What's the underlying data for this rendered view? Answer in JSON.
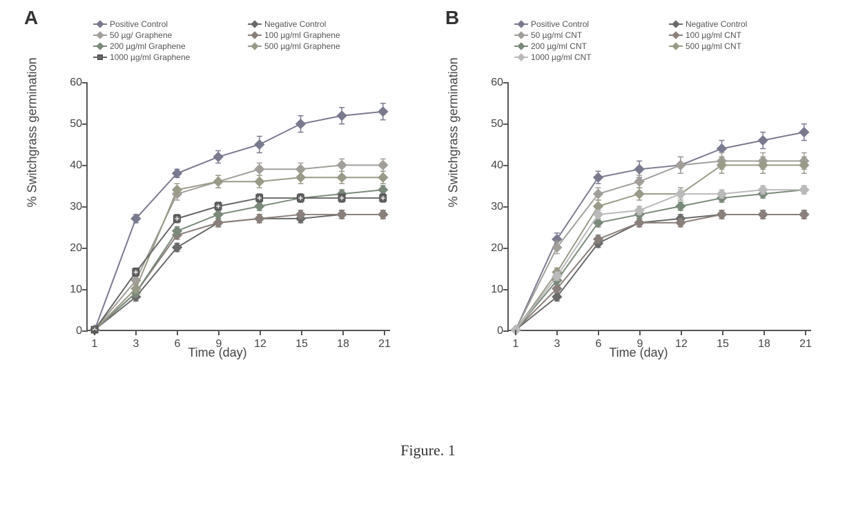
{
  "figure_caption": "Figure. 1",
  "panel_A": {
    "label": "A",
    "type": "line",
    "x_values": [
      1,
      3,
      6,
      9,
      12,
      15,
      18,
      21
    ],
    "xlabel": "Time (day)",
    "ylabel": "% Switchgrass germination",
    "ylim": [
      0,
      60
    ],
    "ytick_step": 10,
    "label_fontsize": 18,
    "tick_fontsize": 16,
    "background_color": "#ffffff",
    "axis_color": "#555555",
    "line_width": 2,
    "marker_size": 7,
    "marker_shape": "diamond",
    "series": [
      {
        "name": "Positive Control",
        "color": "#7a7a8f",
        "values": [
          0,
          27,
          38,
          42,
          45,
          50,
          52,
          53
        ],
        "errors": [
          0,
          1,
          1,
          1.5,
          2,
          2,
          2,
          2
        ]
      },
      {
        "name": "Negative Control",
        "color": "#6a6a6a",
        "values": [
          0,
          8,
          20,
          26,
          27,
          27,
          28,
          28
        ],
        "errors": [
          0,
          1,
          1,
          1,
          1,
          1,
          1,
          1
        ]
      },
      {
        "name": "50 µg/ Graphene",
        "color": "#a29f9a",
        "values": [
          0,
          12,
          33,
          36,
          39,
          39,
          40,
          40
        ],
        "errors": [
          0,
          1,
          1.5,
          1.5,
          1.5,
          1.5,
          1.5,
          1.5
        ]
      },
      {
        "name": "100 µg/ml Graphene",
        "color": "#8a7f7a",
        "values": [
          0,
          9,
          23,
          26,
          27,
          28,
          28,
          28
        ],
        "errors": [
          0,
          1,
          1,
          1,
          1,
          1,
          1,
          1
        ]
      },
      {
        "name": "200 µg/ml Graphene",
        "color": "#7a8a7a",
        "values": [
          0,
          9,
          24,
          28,
          30,
          32,
          33,
          34
        ],
        "errors": [
          0,
          1,
          1,
          1,
          1,
          1,
          1,
          1
        ]
      },
      {
        "name": "500 µg/ml Graphene",
        "color": "#9a9a88",
        "values": [
          0,
          10,
          34,
          36,
          36,
          37,
          37,
          37
        ],
        "errors": [
          0,
          1,
          1.5,
          1.5,
          1.5,
          1.5,
          1.5,
          1.5
        ]
      },
      {
        "name": "1000 µg/ml Graphene",
        "color": "#666666",
        "marker_type": "square",
        "values": [
          0,
          14,
          27,
          30,
          32,
          32,
          32,
          32
        ],
        "errors": [
          0,
          1,
          1,
          1,
          1,
          1,
          1,
          1
        ]
      }
    ]
  },
  "panel_B": {
    "label": "B",
    "type": "line",
    "x_values": [
      1,
      3,
      6,
      9,
      12,
      15,
      18,
      21
    ],
    "xlabel": "Time (day)",
    "ylabel": "% Switchgrass germination",
    "ylim": [
      0,
      60
    ],
    "ytick_step": 10,
    "label_fontsize": 18,
    "tick_fontsize": 16,
    "background_color": "#ffffff",
    "axis_color": "#555555",
    "line_width": 2,
    "marker_size": 7,
    "marker_shape": "diamond",
    "series": [
      {
        "name": "Positive Control",
        "color": "#7a7a8f",
        "values": [
          0,
          22,
          37,
          39,
          40,
          44,
          46,
          48
        ],
        "errors": [
          0,
          1.5,
          1.5,
          2,
          2,
          2,
          2,
          2
        ]
      },
      {
        "name": "Negative Control",
        "color": "#6a6a6a",
        "values": [
          0,
          8,
          21,
          26,
          27,
          28,
          28,
          28
        ],
        "errors": [
          0,
          1,
          1,
          1,
          1,
          1,
          1,
          1
        ]
      },
      {
        "name": "50 µg/ml CNT",
        "color": "#a29f9a",
        "values": [
          0,
          20,
          33,
          36,
          40,
          41,
          41,
          41
        ],
        "errors": [
          0,
          1.5,
          1.5,
          1.5,
          2,
          2,
          2,
          2
        ]
      },
      {
        "name": "100 µg/ml CNT",
        "color": "#8a7f7a",
        "values": [
          0,
          10,
          22,
          26,
          26,
          28,
          28,
          28
        ],
        "errors": [
          0,
          1,
          1,
          1,
          1,
          1,
          1,
          1
        ]
      },
      {
        "name": "200 µg/ml CNT",
        "color": "#7a8a7a",
        "values": [
          0,
          12,
          26,
          28,
          30,
          32,
          33,
          34
        ],
        "errors": [
          0,
          1,
          1,
          1,
          1,
          1,
          1,
          1
        ]
      },
      {
        "name": "500 µg/ml CNT",
        "color": "#9a9a88",
        "values": [
          0,
          14,
          30,
          33,
          33,
          40,
          40,
          40
        ],
        "errors": [
          0,
          1,
          1.5,
          1.5,
          1.5,
          2,
          2,
          2
        ]
      },
      {
        "name": "1000 µg/ml CNT",
        "color": "#bababa",
        "values": [
          0,
          13,
          28,
          29,
          33,
          33,
          34,
          34
        ],
        "errors": [
          0,
          1,
          1,
          1,
          1,
          1,
          1,
          1
        ]
      }
    ]
  }
}
